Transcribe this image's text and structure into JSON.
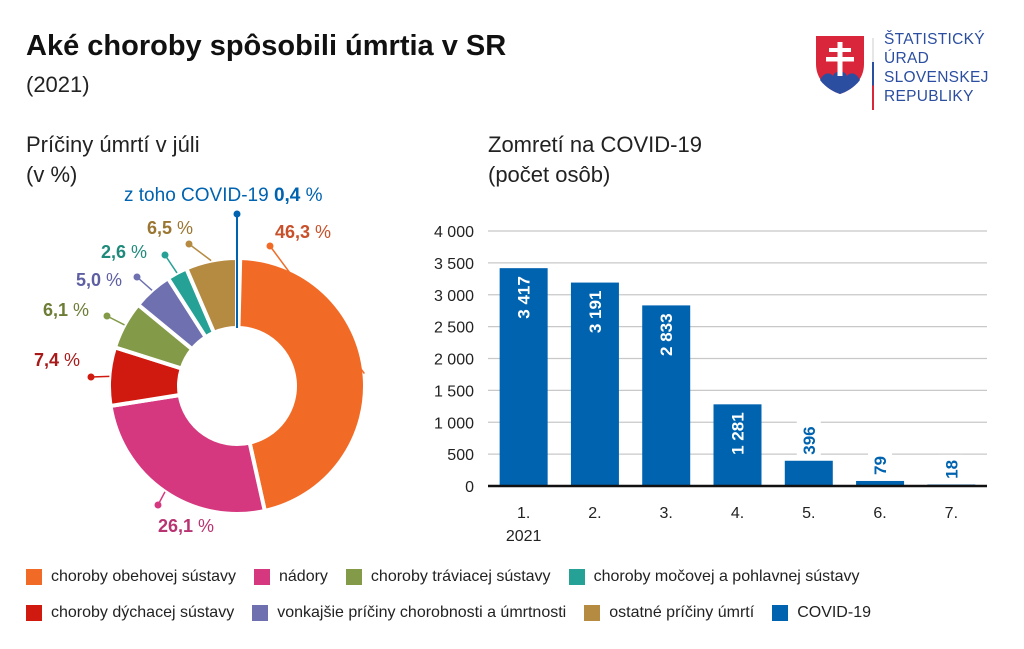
{
  "header": {
    "title": "Aké choroby spôsobili úmrtia v SR",
    "subtitle": "(2021)",
    "logo_lines": [
      "ŠTATISTICKÝ",
      "ÚRAD",
      "SLOVENSKEJ",
      "REPUBLIKY"
    ]
  },
  "colors": {
    "circulatory": "#f26b26",
    "tumors": "#d5387f",
    "digestive": "#839a48",
    "urinary": "#26a195",
    "respiratory": "#d0190f",
    "external": "#6e70b0",
    "other": "#b58a41",
    "covid": "#0063b0"
  },
  "chart_data": [
    {
      "type": "pie",
      "variant": "donut",
      "title": "Príčiny úmrtí v júli",
      "subtitle": "(v %)",
      "slices": [
        {
          "key": "circulatory",
          "label": "choroby obehovej sústavy",
          "value": 46.3,
          "label_text": "46,3",
          "color": "#f26b26",
          "label_color": "#c8502a"
        },
        {
          "key": "tumors",
          "label": "nádory",
          "value": 26.1,
          "label_text": "26,1",
          "color": "#d5387f",
          "label_color": "#b83372"
        },
        {
          "key": "respiratory",
          "label": "choroby dýchacej sústavy",
          "value": 7.4,
          "label_text": "7,4",
          "color": "#d0190f",
          "label_color": "#a81a1a"
        },
        {
          "key": "digestive",
          "label": "choroby tráviacej sústavy",
          "value": 6.1,
          "label_text": "6,1",
          "color": "#839a48",
          "label_color": "#6d7d36"
        },
        {
          "key": "external",
          "label": "vonkajšie príčiny chorobnosti a úmrtnosti",
          "value": 5.0,
          "label_text": "5,0",
          "color": "#6e70b0",
          "label_color": "#5e5fa3"
        },
        {
          "key": "urinary",
          "label": "choroby močovej a pohlavnej sústavy",
          "value": 2.6,
          "label_text": "2,6",
          "color": "#26a195",
          "label_color": "#1f8a7c"
        },
        {
          "key": "other",
          "label": "ostatné príčiny úmrtí",
          "value": 6.5,
          "label_text": "6,5",
          "color": "#b58a41",
          "label_color": "#9a7632"
        }
      ],
      "annotation": {
        "prefix": "z toho COVID-19",
        "value": 0.4,
        "value_text": "0,4",
        "unit": "%",
        "color": "#0063b0"
      },
      "unit": "%"
    },
    {
      "type": "bar",
      "title": "Zomretí na COVID-19",
      "subtitle": "(počet osôb)",
      "categories": [
        "1.",
        "2.",
        "3.",
        "4.",
        "5.",
        "6.",
        "7."
      ],
      "category_sublabel": {
        "index": 0,
        "text": "2021"
      },
      "values": [
        3417,
        3191,
        2833,
        1281,
        396,
        79,
        18
      ],
      "value_labels": [
        "3 417",
        "3 191",
        "2 833",
        "1 281",
        "396",
        "79",
        "18"
      ],
      "yticks": [
        0,
        500,
        1000,
        1500,
        2000,
        2500,
        3000,
        3500,
        4000
      ],
      "ytick_labels": [
        "0",
        "500",
        "1 000",
        "1 500",
        "2 000",
        "2 500",
        "3 000",
        "3 500",
        "4 000"
      ],
      "ylim": [
        0,
        4000
      ],
      "xlabel": "",
      "ylabel": "",
      "grid": true,
      "color": "#0063b0"
    }
  ],
  "legend": {
    "rows": [
      [
        {
          "label": "choroby obehovej sústavy",
          "color": "#f26b26"
        },
        {
          "label": "nádory",
          "color": "#d5387f"
        },
        {
          "label": "choroby tráviacej sústavy",
          "color": "#839a48"
        },
        {
          "label": "choroby močovej a pohlavnej sústavy",
          "color": "#26a195"
        }
      ],
      [
        {
          "label": "choroby dýchacej sústavy",
          "color": "#d0190f"
        },
        {
          "label": "vonkajšie príčiny chorobnosti a úmrtnosti",
          "color": "#6e70b0"
        },
        {
          "label": "ostatné príčiny úmrtí",
          "color": "#b58a41"
        },
        {
          "label": "COVID-19",
          "color": "#0063b0"
        }
      ]
    ]
  }
}
